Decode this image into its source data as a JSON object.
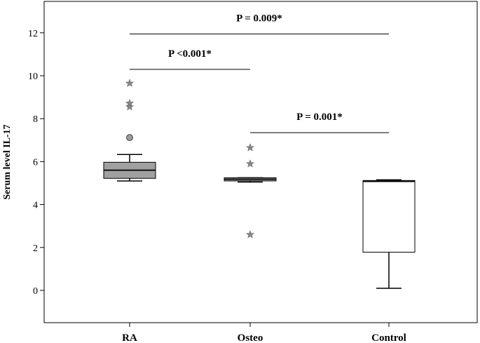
{
  "chart_data": {
    "type": "box",
    "title": "",
    "xlabel": "",
    "ylabel": "Serum level IL-17",
    "ylim": [
      -1.5,
      13.5
    ],
    "yticks": [
      0,
      2,
      4,
      6,
      8,
      10,
      12
    ],
    "grid": false,
    "categories": [
      "RA",
      "Osteo",
      "Control"
    ],
    "boxes": [
      {
        "category": "RA",
        "fill": "#a0a0a0",
        "whisker_low": 5.1,
        "q1": 5.22,
        "median": 5.6,
        "q3": 5.97,
        "whisker_high": 6.33,
        "outliers_circle": [
          7.12
        ],
        "outliers_star": [
          8.55,
          8.72,
          9.65
        ]
      },
      {
        "category": "Osteo",
        "fill": "#a0a0a0",
        "whisker_low": 5.05,
        "q1": 5.1,
        "median": 5.18,
        "q3": 5.25,
        "whisker_high": 5.25,
        "outliers_circle": [],
        "outliers_star": [
          2.6,
          5.9,
          6.65
        ]
      },
      {
        "category": "Control",
        "fill": "#ffffff",
        "whisker_low": 0.1,
        "q1": 1.78,
        "median": 5.08,
        "q3": 5.12,
        "whisker_high": 5.15,
        "outliers_circle": [],
        "outliers_star": []
      }
    ],
    "annotations": [
      {
        "text": "P = 0.009*",
        "from": "RA",
        "to": "Control",
        "y": 11.95
      },
      {
        "text": "P <0.001*",
        "from": "RA",
        "to": "Osteo",
        "y": 10.3
      },
      {
        "text": "P = 0.001*",
        "from": "Osteo",
        "to": "Control",
        "y": 7.35
      }
    ]
  }
}
